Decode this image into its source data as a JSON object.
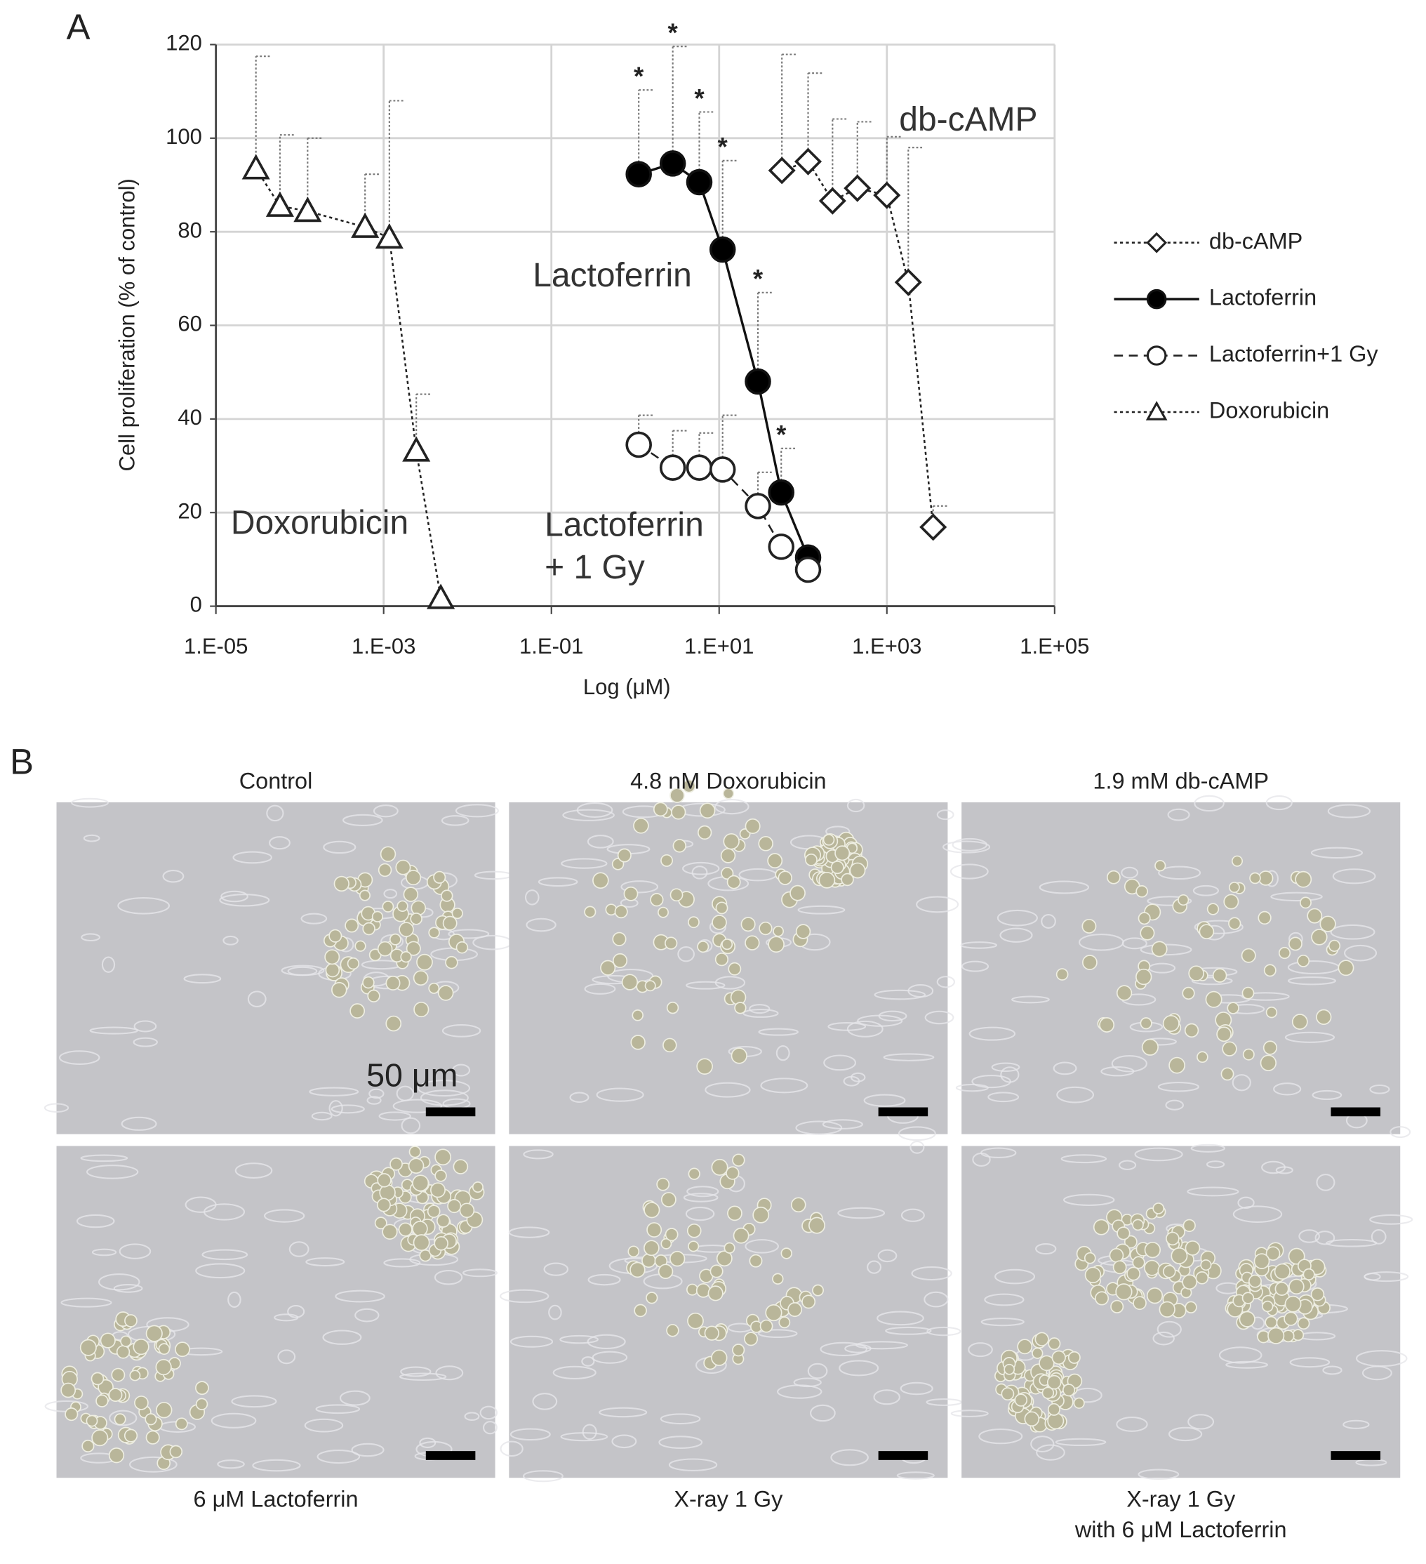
{
  "chart_data": {
    "type": "line",
    "panel_label": "A",
    "xlabel": "Log (μM)",
    "ylabel": "Cell proliferation (% of control)",
    "xscale": "log",
    "xlim": [
      1e-05,
      100000
    ],
    "ylim": [
      0,
      120
    ],
    "xticks": [
      {
        "value": 1e-05,
        "label": "1.E-05"
      },
      {
        "value": 0.001,
        "label": "1.E-03"
      },
      {
        "value": 0.1,
        "label": "1.E-01"
      },
      {
        "value": 10,
        "label": "1.E+01"
      },
      {
        "value": 1000,
        "label": "1.E+03"
      },
      {
        "value": 100000,
        "label": "1.E+05"
      }
    ],
    "yticks": [
      0,
      20,
      40,
      60,
      80,
      100,
      120
    ],
    "grid": true,
    "legend": "right",
    "annotations": [
      [
        "Doxorubicin"
      ],
      [
        "Lactoferrin"
      ],
      [
        "Lactoferrin",
        "+ 1 Gy"
      ],
      [
        "db-cAMP"
      ]
    ],
    "series": [
      {
        "name": "db-cAMP",
        "color": "#222222",
        "marker": "diamond",
        "fill": "#ffffff",
        "dash": "dotted",
        "x": [
          56,
          115,
          225,
          445,
          1000,
          1800,
          3560
        ],
        "values": [
          93.1,
          95,
          86.6,
          89.3,
          87.8,
          69.2,
          16.9
        ],
        "errors": [
          24.8,
          18.9,
          17.5,
          14.2,
          12.5,
          28.8,
          4.5
        ]
      },
      {
        "name": "Lactoferrin",
        "color": "#111111",
        "marker": "circle",
        "fill": "#000000",
        "dash": "solid",
        "x": [
          1.1,
          2.8,
          5.8,
          11,
          29,
          55,
          115
        ],
        "values": [
          92.3,
          94.6,
          90.6,
          76.2,
          48,
          24.3,
          10.4
        ],
        "errors": [
          18,
          25,
          15,
          19,
          19,
          9.4,
          null
        ],
        "significance": [
          "*",
          "*",
          "*",
          "*",
          "*",
          "*",
          null
        ]
      },
      {
        "name": "Lactoferrin+1 Gy",
        "color": "#222222",
        "marker": "circle",
        "fill": "#ffffff",
        "dash": "dashed",
        "x": [
          1.1,
          2.8,
          5.8,
          11,
          29,
          55,
          115
        ],
        "values": [
          34.5,
          29.6,
          29.6,
          29.2,
          21.4,
          12.7,
          7.8
        ],
        "errors": [
          6.3,
          7.9,
          7.4,
          11.6,
          7.2,
          null,
          null
        ]
      },
      {
        "name": "Doxorubicin",
        "color": "#222222",
        "marker": "triangle",
        "fill": "#ffffff",
        "dash": "dotted",
        "x": [
          3e-05,
          5.8e-05,
          0.000124,
          0.0006,
          0.00117,
          0.00245,
          0.0048
        ],
        "values": [
          93.5,
          85.5,
          84.4,
          81,
          78.7,
          33.2,
          1.7
        ],
        "errors": [
          24,
          15.2,
          15.6,
          11.3,
          29.3,
          12.1,
          null
        ]
      }
    ]
  },
  "panel_b": {
    "panel_label": "B",
    "scale_bar": "50 μm",
    "images": [
      {
        "title": "Control"
      },
      {
        "title": "4.8 nM Doxorubicin"
      },
      {
        "title": "1.9 mM db-cAMP"
      },
      {
        "caption": [
          "6 μM Lactoferrin"
        ]
      },
      {
        "caption": [
          "X-ray 1 Gy"
        ]
      },
      {
        "caption": [
          "X-ray 1 Gy",
          "with 6 μM Lactoferrin"
        ]
      }
    ]
  }
}
